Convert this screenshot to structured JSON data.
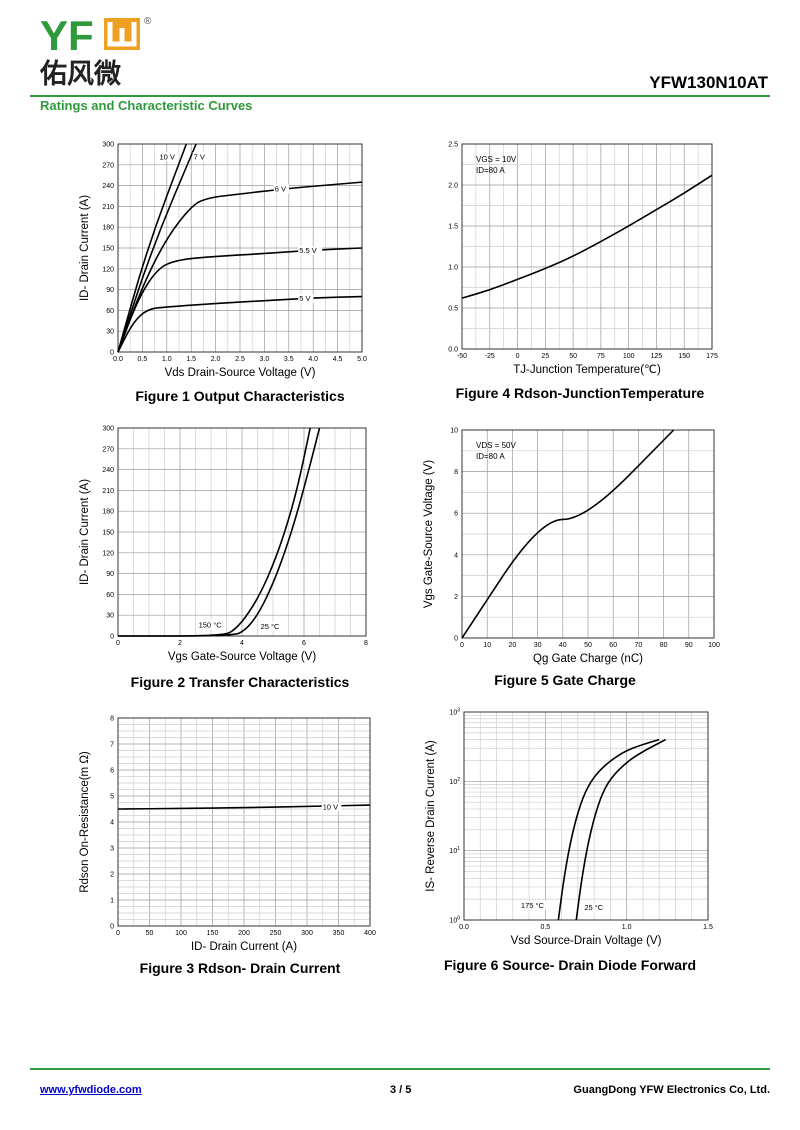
{
  "header": {
    "brand": "YFW",
    "brand_cn": "佑风微",
    "registered": "®",
    "brand_color": "#2e9a3c",
    "accent_color": "#f0a020",
    "part_number": "YFW130N10AT",
    "section_title": "Ratings and Characteristic Curves"
  },
  "footer": {
    "website": "www.yfwdiode.com",
    "page": "3 / 5",
    "company": "GuangDong YFW Electronics Co, Ltd."
  },
  "chart_data": [
    {
      "id": "fig1",
      "type": "line",
      "caption": "Figure 1 Output Characteristics",
      "xlabel": "Vds Drain-Source Voltage (V)",
      "ylabel": "ID- Drain Current (A)",
      "xlim": [
        0,
        5
      ],
      "ylim": [
        0,
        300
      ],
      "xticks": [
        "0.0",
        "0.5",
        "1.0",
        "1.5",
        "2.0",
        "2.5",
        "3.0",
        "3.5",
        "4.0",
        "4.5",
        "5.0"
      ],
      "yticks": [
        "0",
        "30",
        "60",
        "90",
        "120",
        "150",
        "180",
        "210",
        "240",
        "270",
        "300"
      ],
      "series": [
        {
          "name": "10 V",
          "x": [
            0,
            0.6,
            1.4
          ],
          "y": [
            0,
            150,
            300
          ]
        },
        {
          "name": "7 V",
          "x": [
            0,
            0.7,
            1.6
          ],
          "y": [
            0,
            150,
            300
          ]
        },
        {
          "name": "6 V",
          "x": [
            0,
            0.5,
            1.0,
            1.5,
            1.8,
            2.5,
            3.5,
            5.0
          ],
          "y": [
            0,
            95,
            165,
            210,
            222,
            228,
            236,
            245
          ]
        },
        {
          "name": "5.5 V",
          "x": [
            0,
            0.4,
            0.8,
            1.2,
            2.0,
            3.0,
            4.0,
            5.0
          ],
          "y": [
            0,
            75,
            120,
            133,
            138,
            142,
            147,
            150
          ]
        },
        {
          "name": "5 V",
          "x": [
            0,
            0.3,
            0.6,
            1.0,
            2.0,
            3.0,
            4.0,
            5.0
          ],
          "y": [
            0,
            42,
            62,
            65,
            70,
            74,
            78,
            80
          ]
        }
      ]
    },
    {
      "id": "fig4",
      "type": "line",
      "caption": "Figure 4 Rdson-JunctionTemperature",
      "xlabel": "TJ-Junction Temperature(℃)",
      "ylabel": "",
      "xlim": [
        -50,
        175
      ],
      "ylim": [
        0,
        2.5
      ],
      "xticks": [
        "-50",
        "-25",
        "0",
        "25",
        "50",
        "75",
        "100",
        "125",
        "150",
        "175"
      ],
      "yticks": [
        "0.0",
        "0.5",
        "1.0",
        "1.5",
        "2.0",
        "2.5"
      ],
      "annotations": [
        "VGS = 10V",
        "ID=80 A"
      ],
      "series": [
        {
          "name": "",
          "x": [
            -50,
            -25,
            0,
            25,
            50,
            75,
            100,
            125,
            150,
            175
          ],
          "y": [
            0.62,
            0.72,
            0.85,
            0.98,
            1.13,
            1.31,
            1.5,
            1.7,
            1.9,
            2.12
          ]
        }
      ]
    },
    {
      "id": "fig2",
      "type": "line",
      "caption": "Figure 2 Transfer Characteristics",
      "xlabel": "Vgs Gate-Source Voltage (V)",
      "ylabel": "ID- Drain Current (A)",
      "xlim": [
        0,
        8
      ],
      "ylim": [
        0,
        300
      ],
      "xticks": [
        "0",
        "2",
        "4",
        "6",
        "8"
      ],
      "yticks": [
        "0",
        "30",
        "60",
        "90",
        "120",
        "150",
        "180",
        "210",
        "240",
        "270",
        "300"
      ],
      "series": [
        {
          "name": "150 °C",
          "x": [
            0,
            3.4,
            3.8,
            4.2,
            4.6,
            5.0,
            5.4,
            5.8,
            6.2
          ],
          "y": [
            0,
            0,
            10,
            32,
            62,
            102,
            152,
            215,
            300
          ]
        },
        {
          "name": "25 °C",
          "x": [
            0,
            3.7,
            4.1,
            4.5,
            4.9,
            5.3,
            5.7,
            6.1,
            6.5
          ],
          "y": [
            0,
            0,
            8,
            30,
            65,
            110,
            165,
            230,
            300
          ]
        }
      ]
    },
    {
      "id": "fig5",
      "type": "line",
      "caption": "Figure 5 Gate Charge",
      "xlabel": "Qg Gate Charge (nC)",
      "ylabel": "Vgs Gate-Source Voltage (V)",
      "xlim": [
        0,
        100
      ],
      "ylim": [
        0,
        10
      ],
      "xticks": [
        "0",
        "10",
        "20",
        "30",
        "40",
        "50",
        "60",
        "70",
        "80",
        "90",
        "100"
      ],
      "yticks": [
        "0",
        "2",
        "4",
        "6",
        "8",
        "10"
      ],
      "annotations": [
        "VDS = 50V",
        "ID=80 A"
      ],
      "series": [
        {
          "name": "",
          "x": [
            0,
            31,
            49,
            84
          ],
          "y": [
            0,
            5.7,
            5.7,
            10
          ]
        }
      ]
    },
    {
      "id": "fig3",
      "type": "line",
      "caption": "Figure 3 Rdson- Drain Current",
      "xlabel": "ID- Drain Current (A)",
      "ylabel": "Rdson On-Resistance(m Ω)",
      "xlim": [
        0,
        400
      ],
      "ylim": [
        0,
        8
      ],
      "xticks": [
        "0",
        "50",
        "100",
        "150",
        "200",
        "250",
        "300",
        "350",
        "400"
      ],
      "yticks": [
        "0",
        "1",
        "2",
        "3",
        "4",
        "5",
        "6",
        "7",
        "8"
      ],
      "series": [
        {
          "name": "10 V",
          "x": [
            0,
            100,
            200,
            300,
            400
          ],
          "y": [
            4.5,
            4.52,
            4.55,
            4.6,
            4.65
          ]
        }
      ]
    },
    {
      "id": "fig6",
      "type": "line",
      "caption": "Figure 6 Source- Drain Diode Forward",
      "xlabel": "Vsd Source-Drain Voltage (V)",
      "ylabel": "IS- Reverse Drain Current (A)",
      "xlim": [
        0,
        1.5
      ],
      "ylim": [
        1,
        1000
      ],
      "yscale": "log",
      "xticks": [
        "0.0",
        "0.5",
        "1.0",
        "1.5"
      ],
      "yticks": [
        "10^0",
        "10^1",
        "10^2",
        "10^3"
      ],
      "series": [
        {
          "name": "175 °C",
          "x": [
            0.58,
            0.62,
            0.67,
            0.73,
            0.8,
            0.9,
            1.0,
            1.1,
            1.2
          ],
          "y": [
            1,
            5,
            20,
            60,
            120,
            200,
            280,
            340,
            400
          ]
        },
        {
          "name": "25 °C",
          "x": [
            0.69,
            0.73,
            0.78,
            0.84,
            0.9,
            1.0,
            1.1,
            1.24
          ],
          "y": [
            1,
            5,
            20,
            60,
            110,
            190,
            270,
            400
          ]
        }
      ]
    }
  ]
}
